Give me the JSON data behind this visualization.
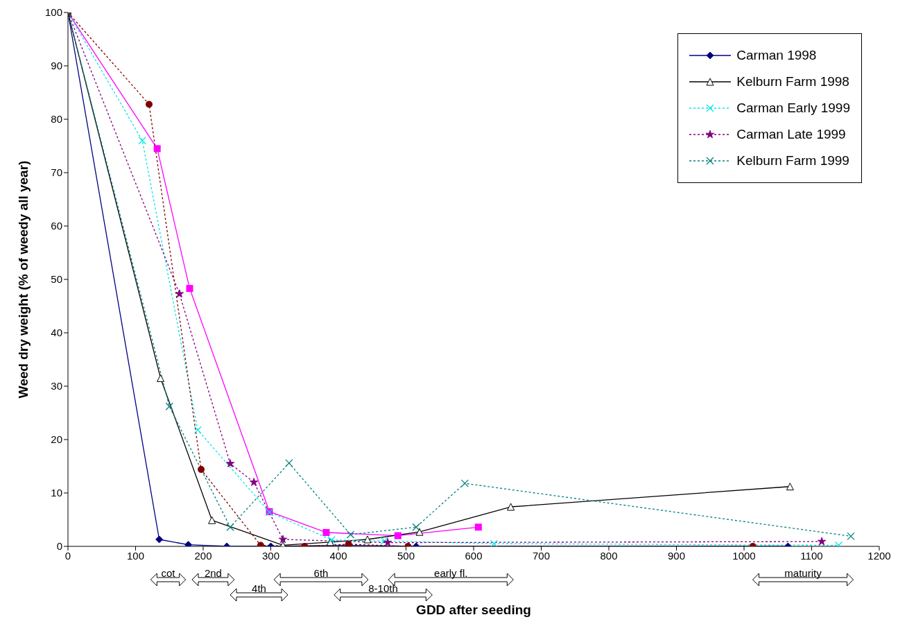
{
  "chart_data": {
    "type": "line",
    "xlabel": "GDD after seeding",
    "ylabel": "Weed dry weight (% of weedy all year)",
    "xlim": [
      0,
      1200
    ],
    "xticks": [
      0,
      100,
      200,
      300,
      400,
      500,
      600,
      700,
      800,
      900,
      1000,
      1100,
      1200
    ],
    "ylim": [
      0,
      100
    ],
    "yticks": [
      0,
      10,
      20,
      30,
      40,
      50,
      60,
      70,
      80,
      90,
      100
    ],
    "legend": "top right",
    "series": [
      {
        "name": "Carman 1998",
        "color": "#000080",
        "marker": "diamond",
        "line_style": "solid",
        "x": [
          0,
          135,
          178,
          235,
          300,
          415,
          515,
          1065
        ],
        "values": [
          100,
          1.3,
          0.3,
          0,
          0,
          0.2,
          0,
          0
        ]
      },
      {
        "color": "#ff00ff",
        "marker": "square",
        "line_style": "solid",
        "x": [
          0,
          132,
          180,
          298,
          382,
          488,
          607
        ],
        "values": [
          100,
          74.5,
          48.3,
          6.5,
          2.6,
          2,
          3.6
        ]
      },
      {
        "name": "Kelburn Farm 1998",
        "color": "#000000",
        "marker": "triangle",
        "line_style": "solid",
        "x": [
          0,
          137,
          213,
          318,
          388,
          443,
          520,
          655,
          1068
        ],
        "values": [
          100,
          31.5,
          4.9,
          0.2,
          0.8,
          1.3,
          2.7,
          7.4,
          11.2
        ]
      },
      {
        "name": "Carman Early 1999",
        "color": "#00e5e5",
        "marker": "cross",
        "line_style": "dotted",
        "x": [
          0,
          110,
          192,
          298,
          390,
          468,
          630,
          1140
        ],
        "values": [
          100,
          76,
          21.8,
          6.4,
          1.2,
          1,
          0.5,
          0.2
        ]
      },
      {
        "name": "Carman Late 1999",
        "color": "#800080",
        "marker": "star",
        "line_style": "dotted",
        "x": [
          0,
          165,
          240,
          275,
          318,
          473,
          1115
        ],
        "values": [
          100,
          47.3,
          15.5,
          12,
          1.3,
          0.7,
          0.9
        ]
      },
      {
        "color": "#800000",
        "marker": "circle",
        "line_style": "dotted",
        "x": [
          0,
          120,
          197,
          285,
          350,
          415,
          503,
          1013
        ],
        "values": [
          100,
          82.8,
          14.4,
          0.2,
          0,
          0.4,
          0,
          0
        ]
      },
      {
        "name": "Kelburn Farm 1999",
        "color": "#008080",
        "marker": "cross",
        "line_style": "dotted",
        "x": [
          0,
          150,
          240,
          327,
          418,
          515,
          587,
          1158
        ],
        "values": [
          100,
          26.2,
          3.6,
          15.6,
          2.2,
          3.6,
          11.8,
          1.9
        ]
      }
    ],
    "annotations": [
      "cot",
      "2nd",
      "4th",
      "6th",
      "8-10th",
      "early fl.",
      "maturity"
    ]
  }
}
